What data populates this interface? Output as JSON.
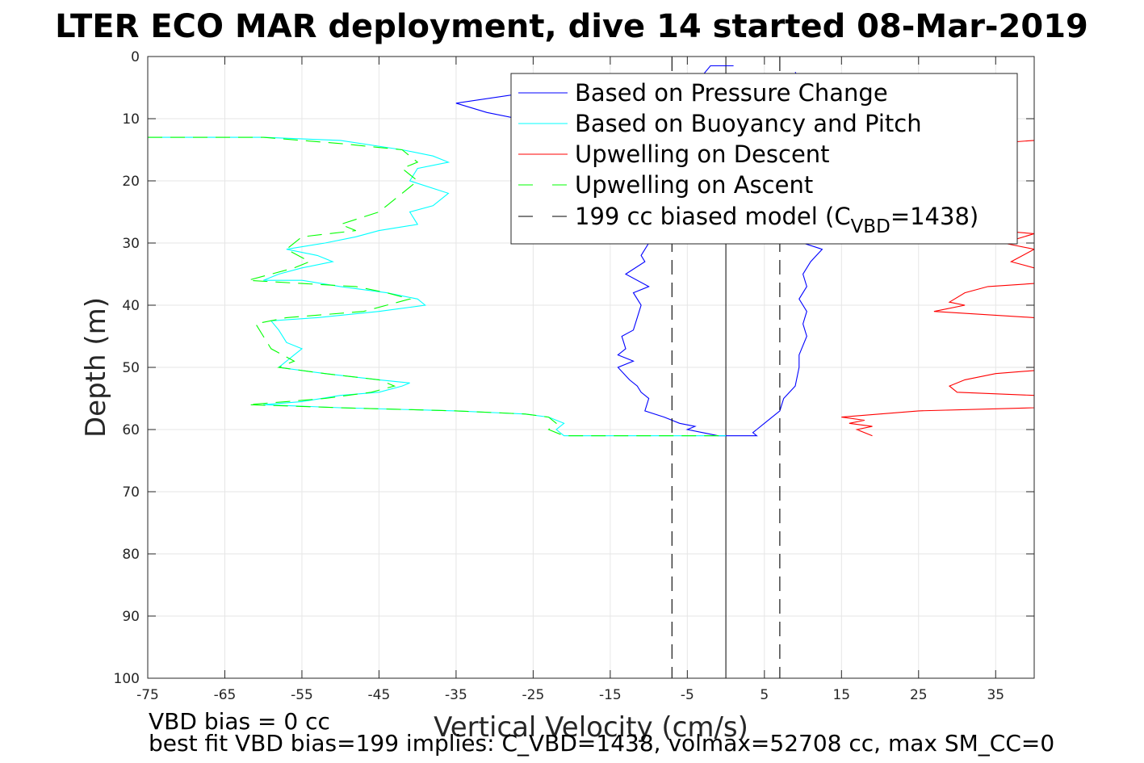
{
  "title": "LTER ECO MAR deployment, dive 14 started 08-Mar-2019",
  "notes": {
    "line1": "VBD bias = 0 cc",
    "line2": "best fit VBD bias=199 implies: C_VBD=1438, volmax=52708 cc, max SM_CC=0"
  },
  "chart_data": {
    "type": "line",
    "title": "LTER ECO MAR deployment, dive 14 started 08-Mar-2019",
    "xlabel": "Vertical Velocity (cm/s)",
    "ylabel": "Depth (m)",
    "xlim": [
      -75,
      40
    ],
    "ylim": [
      0,
      100
    ],
    "y_reversed": true,
    "grid": true,
    "xticks": [
      -75,
      -65,
      -55,
      -45,
      -35,
      -25,
      -15,
      -5,
      5,
      15,
      25,
      35
    ],
    "yticks": [
      0,
      10,
      20,
      30,
      40,
      50,
      60,
      70,
      80,
      90,
      100
    ],
    "legend_position": "top-right",
    "series": [
      {
        "name": "Based on Pressure Change",
        "color": "#0000ff",
        "style": "solid",
        "points": [
          [
            1,
            1.5
          ],
          [
            -2,
            1.5
          ],
          [
            -3,
            3
          ],
          [
            -14,
            4.5
          ],
          [
            -24,
            5.5
          ],
          [
            -35,
            7.5
          ],
          [
            -31,
            9
          ],
          [
            -25,
            10.5
          ],
          [
            -23,
            11.5
          ],
          [
            -20,
            13
          ],
          [
            -14,
            20
          ],
          [
            -12,
            25
          ],
          [
            -10,
            30
          ],
          [
            -11,
            32
          ],
          [
            -10.5,
            33
          ],
          [
            -13,
            35
          ],
          [
            -10,
            37
          ],
          [
            -12,
            38
          ],
          [
            -11,
            40
          ],
          [
            -11.5,
            42
          ],
          [
            -12,
            44
          ],
          [
            -13.5,
            45
          ],
          [
            -13,
            47
          ],
          [
            -14,
            48
          ],
          [
            -12,
            49
          ],
          [
            -14,
            50
          ],
          [
            -12.5,
            52
          ],
          [
            -11.5,
            53
          ],
          [
            -11,
            54
          ],
          [
            -10,
            55
          ],
          [
            -10.5,
            57
          ],
          [
            -8,
            58
          ],
          [
            -6,
            59
          ],
          [
            -4,
            59.5
          ],
          [
            -5,
            60
          ],
          [
            -3,
            60.5
          ],
          [
            -1,
            61
          ],
          [
            0,
            61
          ],
          [
            4,
            61
          ],
          [
            3.5,
            60.5
          ],
          [
            4,
            60
          ],
          [
            5,
            59
          ],
          [
            6,
            58
          ],
          [
            7,
            57
          ],
          [
            7.5,
            55
          ],
          [
            9,
            53
          ],
          [
            9.5,
            50
          ],
          [
            9.5,
            48
          ],
          [
            10.5,
            45
          ],
          [
            10,
            43
          ],
          [
            10.5,
            41
          ],
          [
            9.5,
            39
          ],
          [
            10.5,
            37
          ],
          [
            10,
            35
          ],
          [
            11,
            33
          ],
          [
            12.5,
            31
          ],
          [
            10,
            30
          ],
          [
            9,
            28
          ],
          [
            8,
            25
          ],
          [
            9,
            20
          ],
          [
            9,
            15
          ],
          [
            9,
            10
          ],
          [
            10,
            7
          ],
          [
            10,
            5
          ],
          [
            9,
            2.5
          ]
        ]
      },
      {
        "name": "Based on Buoyancy and Pitch",
        "color": "#00ffff",
        "style": "solid",
        "points": [
          [
            -75,
            13
          ],
          [
            -60,
            13
          ],
          [
            -50,
            13.5
          ],
          [
            -42,
            15
          ],
          [
            -38,
            16
          ],
          [
            -36,
            17
          ],
          [
            -40,
            18
          ],
          [
            -41,
            20
          ],
          [
            -36,
            22
          ],
          [
            -38,
            24
          ],
          [
            -41,
            25
          ],
          [
            -40,
            27
          ],
          [
            -45,
            28
          ],
          [
            -48,
            29
          ],
          [
            -52,
            30
          ],
          [
            -57,
            31
          ],
          [
            -53,
            32
          ],
          [
            -51,
            33
          ],
          [
            -55,
            34
          ],
          [
            -58,
            35
          ],
          [
            -60,
            36
          ],
          [
            -55,
            36
          ],
          [
            -50,
            37
          ],
          [
            -44,
            38
          ],
          [
            -40,
            39
          ],
          [
            -39,
            40
          ],
          [
            -45,
            41
          ],
          [
            -53,
            42
          ],
          [
            -59,
            42.5
          ],
          [
            -58,
            44
          ],
          [
            -57,
            46
          ],
          [
            -55,
            47
          ],
          [
            -56,
            48
          ],
          [
            -58,
            50
          ],
          [
            -52,
            51
          ],
          [
            -45,
            52
          ],
          [
            -41,
            52.5
          ],
          [
            -42,
            53
          ],
          [
            -45,
            54
          ],
          [
            -50,
            54.5
          ],
          [
            -55,
            55.5
          ],
          [
            -60,
            56
          ],
          [
            -50,
            56.5
          ],
          [
            -35,
            57
          ],
          [
            -26,
            57.5
          ],
          [
            -23,
            58
          ],
          [
            -21,
            59
          ],
          [
            -22,
            60
          ],
          [
            -21,
            61
          ],
          [
            0,
            61
          ]
        ]
      },
      {
        "name": "Upwelling on Descent",
        "color": "#ff0000",
        "style": "solid",
        "points": [
          [
            40,
            13.5
          ],
          [
            29,
            14.5
          ],
          [
            25,
            15
          ],
          [
            24,
            16
          ],
          [
            26,
            17
          ],
          [
            27,
            19
          ],
          [
            29,
            20
          ],
          [
            33,
            25
          ],
          [
            35,
            28
          ],
          [
            40,
            28.5
          ],
          [
            36,
            30
          ],
          [
            40,
            31
          ],
          [
            37,
            33
          ],
          [
            40,
            34
          ],
          [
            40,
            36.5
          ],
          [
            34,
            37
          ],
          [
            31,
            38
          ],
          [
            29,
            39.5
          ],
          [
            31,
            40
          ],
          [
            27,
            41
          ],
          [
            40,
            42
          ],
          [
            40,
            50.5
          ],
          [
            35,
            51
          ],
          [
            31,
            52
          ],
          [
            29,
            53
          ],
          [
            30,
            54
          ],
          [
            40,
            54.5
          ],
          [
            40,
            56.5
          ],
          [
            25,
            57
          ],
          [
            15,
            58
          ],
          [
            18,
            58.5
          ],
          [
            16,
            59
          ],
          [
            19,
            59.5
          ],
          [
            17,
            60
          ],
          [
            19,
            61
          ]
        ]
      },
      {
        "name": "Upwelling on Ascent",
        "color": "#00ff00",
        "style": "dashed",
        "points": [
          [
            -75,
            13
          ],
          [
            -60,
            13
          ],
          [
            -50,
            14
          ],
          [
            -42,
            15
          ],
          [
            -40,
            17
          ],
          [
            -42,
            18
          ],
          [
            -40,
            20
          ],
          [
            -42,
            22
          ],
          [
            -44,
            24
          ],
          [
            -45,
            25
          ],
          [
            -50,
            27
          ],
          [
            -48,
            28
          ],
          [
            -55,
            29
          ],
          [
            -57,
            31
          ],
          [
            -54,
            33
          ],
          [
            -56,
            34
          ],
          [
            -59,
            35
          ],
          [
            -62,
            36
          ],
          [
            -55,
            36.5
          ],
          [
            -48,
            37
          ],
          [
            -44,
            38
          ],
          [
            -41,
            39
          ],
          [
            -47,
            41
          ],
          [
            -57,
            42
          ],
          [
            -61,
            43
          ],
          [
            -60,
            45
          ],
          [
            -59,
            47
          ],
          [
            -56,
            49
          ],
          [
            -58,
            50
          ],
          [
            -52,
            51
          ],
          [
            -45,
            52
          ],
          [
            -43,
            53
          ],
          [
            -46,
            54
          ],
          [
            -52,
            55
          ],
          [
            -57,
            55.5
          ],
          [
            -62,
            56
          ],
          [
            -50,
            56.5
          ],
          [
            -35,
            57
          ],
          [
            -26,
            57.5
          ],
          [
            -23,
            58
          ],
          [
            -22,
            59
          ],
          [
            -23,
            60
          ],
          [
            -21,
            61
          ],
          [
            0,
            61
          ]
        ]
      },
      {
        "name": "199 cc biased model (C_VBD=1438)",
        "legend_label_main": "199 cc biased model (C",
        "legend_label_sub": "VBD",
        "legend_label_tail": "=1438)",
        "color": "#000000",
        "style": "dashed",
        "points": [
          [
            -7,
            0
          ],
          [
            -7,
            100
          ]
        ],
        "mirror_points": [
          [
            7,
            0
          ],
          [
            7,
            100
          ]
        ]
      }
    ],
    "reference_lines": [
      {
        "x": 0,
        "color": "#000000",
        "style": "solid"
      }
    ]
  }
}
